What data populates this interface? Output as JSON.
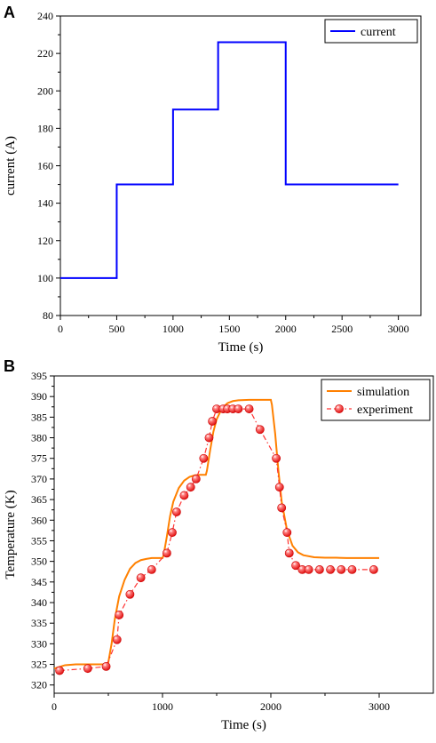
{
  "colors": {
    "current": "#0000ff",
    "simulation": "#ff8000",
    "experiment": "#ff3333",
    "axis": "#000000"
  },
  "chart_data": [
    {
      "type": "line",
      "panel_label": "A",
      "xlabel": "Time (s)",
      "ylabel": "current (A)",
      "xlim": [
        0,
        3200
      ],
      "ylim": [
        80,
        240
      ],
      "xticks": [
        0,
        500,
        1000,
        1500,
        2000,
        2500,
        3000
      ],
      "yticks": [
        80,
        100,
        120,
        140,
        160,
        180,
        200,
        220,
        240
      ],
      "legend_position": "top-right",
      "series": [
        {
          "name": "current",
          "style": "step",
          "color": "#0000ff",
          "x": [
            0,
            500,
            500,
            1000,
            1000,
            1400,
            1400,
            2000,
            2000,
            3000
          ],
          "y": [
            100,
            100,
            150,
            150,
            190,
            190,
            226,
            226,
            150,
            150
          ]
        }
      ]
    },
    {
      "type": "line",
      "panel_label": "B",
      "xlabel": "Time (s)",
      "ylabel": "Temperature (K)",
      "xlim": [
        0,
        3500
      ],
      "ylim": [
        318,
        395
      ],
      "xticks": [
        0,
        1000,
        2000,
        3000
      ],
      "yticks": [
        320,
        325,
        330,
        335,
        340,
        345,
        350,
        355,
        360,
        365,
        370,
        375,
        380,
        385,
        390,
        395
      ],
      "legend_position": "top-right",
      "series": [
        {
          "name": "simulation",
          "style": "solid",
          "color": "#ff8000",
          "x": [
            0,
            100,
            200,
            300,
            400,
            480,
            500,
            530,
            560,
            600,
            650,
            700,
            750,
            800,
            850,
            900,
            950,
            1000,
            1010,
            1040,
            1070,
            1100,
            1150,
            1200,
            1250,
            1300,
            1350,
            1400,
            1410,
            1440,
            1470,
            1500,
            1550,
            1600,
            1650,
            1700,
            1800,
            1900,
            2000,
            2010,
            2040,
            2070,
            2100,
            2150,
            2200,
            2250,
            2300,
            2400,
            2500,
            2600,
            2700,
            2800,
            2900,
            3000
          ],
          "y": [
            324,
            324.8,
            325.0,
            325.0,
            325.0,
            325.0,
            325.5,
            330,
            336,
            341.5,
            345.5,
            348.2,
            349.6,
            350.3,
            350.6,
            350.8,
            350.8,
            350.8,
            351.5,
            356,
            361,
            364.5,
            367.8,
            369.6,
            370.5,
            370.9,
            371.0,
            371.0,
            372,
            377,
            381.5,
            384.5,
            387.2,
            388.4,
            388.9,
            389.1,
            389.2,
            389.2,
            389.2,
            388,
            381,
            372,
            364.5,
            357.5,
            353.8,
            352.2,
            351.5,
            351.0,
            350.9,
            350.9,
            350.8,
            350.8,
            350.8,
            350.8
          ]
        },
        {
          "name": "experiment",
          "style": "dash-dot-markers",
          "color": "#ff3333",
          "x": [
            50,
            310,
            480,
            580,
            600,
            700,
            800,
            900,
            1040,
            1090,
            1130,
            1200,
            1260,
            1310,
            1380,
            1430,
            1460,
            1500,
            1560,
            1600,
            1650,
            1700,
            1800,
            1900,
            2050,
            2080,
            2100,
            2150,
            2170,
            2230,
            2290,
            2350,
            2450,
            2550,
            2650,
            2750,
            2950
          ],
          "y": [
            323.5,
            324,
            324.5,
            331,
            337,
            342,
            346,
            348,
            352,
            357,
            362,
            366,
            368,
            370,
            375,
            380,
            384,
            387,
            387,
            387,
            387,
            387,
            387,
            382,
            375,
            368,
            363,
            357,
            352,
            349,
            348,
            348,
            348,
            348,
            348,
            348,
            348
          ]
        }
      ]
    }
  ]
}
